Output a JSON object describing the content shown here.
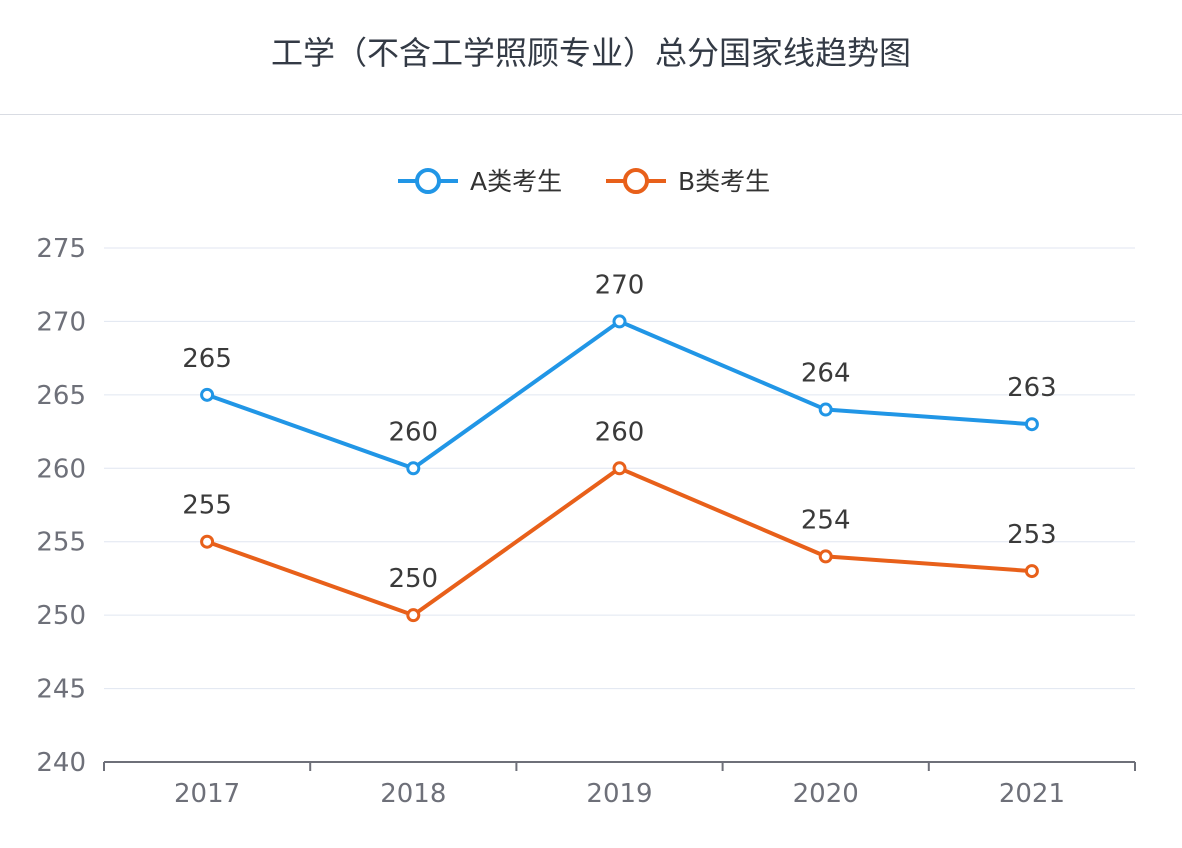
{
  "chart_data": {
    "type": "line",
    "title": "工学（不含工学照顾专业）总分国家线趋势图",
    "categories": [
      "2017",
      "2018",
      "2019",
      "2020",
      "2021"
    ],
    "series": [
      {
        "name": "A类考生",
        "color": "#2196e6",
        "values": [
          265,
          260,
          270,
          264,
          263
        ]
      },
      {
        "name": "B类考生",
        "color": "#e8601a",
        "values": [
          255,
          250,
          260,
          254,
          253
        ]
      }
    ],
    "ylim": [
      240,
      275
    ],
    "yticks": [
      240,
      245,
      250,
      255,
      260,
      265,
      270,
      275
    ],
    "xlabel": "",
    "ylabel": "",
    "grid": true,
    "legend_position": "top-center",
    "data_labels": true
  }
}
